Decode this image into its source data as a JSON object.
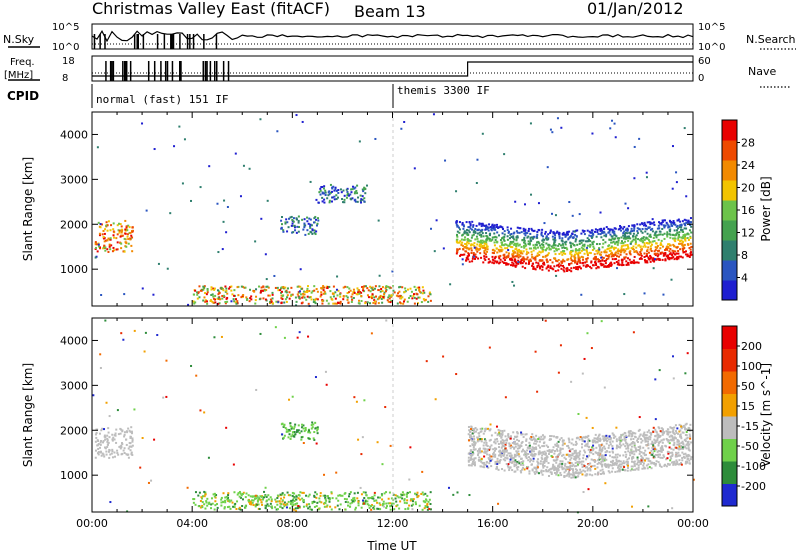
{
  "header": {
    "title": "Christmas Valley East (fitACF)",
    "beam": "Beam 13",
    "date": "01/Jan/2012"
  },
  "top_panels": {
    "nsky_label": "N.Sky",
    "nsky_ticks": [
      "10^5",
      "10^0"
    ],
    "nsearch_label": "N.Search",
    "nsearch_ticks": [
      "10^5",
      "10^0"
    ],
    "freq_label": "Freq.",
    "freq_unit": "[MHz]",
    "freq_ticks": [
      "18",
      "8"
    ],
    "nave_label": "Nave",
    "nave_ticks": [
      "60",
      "0"
    ],
    "cpid_label": "CPID",
    "cpid_modes": [
      {
        "name": "normal (fast) 151 IF",
        "start_hour": 0,
        "end_hour": 12
      },
      {
        "name": "themis 3300 IF",
        "start_hour": 12,
        "end_hour": 24
      }
    ],
    "nave_step_hour": 15
  },
  "chart_data": [
    {
      "type": "heatmap",
      "title": "",
      "ylabel": "Slant Range [km]",
      "xlabel": "",
      "xlim": [
        0,
        24
      ],
      "ylim": [
        180,
        4500
      ],
      "y_ticks": [
        1000,
        2000,
        3000,
        4000
      ],
      "colorbar": {
        "label": "Power [dB]",
        "ticks": [
          "4",
          "8",
          "12",
          "16",
          "20",
          "24",
          "28"
        ],
        "colors": [
          "#1f1fd0",
          "#2a55c0",
          "#2f7f6e",
          "#44a24f",
          "#6cc34a",
          "#f2c400",
          "#f28a00",
          "#ee4a00",
          "#e80000"
        ]
      },
      "features": [
        {
          "name": "early-arc",
          "hours": [
            0.1,
            1.6
          ],
          "range_km": [
            1400,
            2100
          ],
          "level": 24
        },
        {
          "name": "mid-patch",
          "hours": [
            7.5,
            9.0
          ],
          "range_km": [
            1800,
            2200
          ],
          "level": 6
        },
        {
          "name": "upper-streak",
          "hours": [
            9.0,
            11.0
          ],
          "range_km": [
            2500,
            2900
          ],
          "level": 6
        },
        {
          "name": "low-band",
          "hours": [
            4.0,
            13.5
          ],
          "range_km": [
            250,
            650
          ],
          "level": 20
        },
        {
          "name": "evening-arc",
          "hours": [
            14.5,
            23.9
          ],
          "range_km": [
            900,
            2300
          ],
          "level": 28
        }
      ]
    },
    {
      "type": "heatmap",
      "title": "",
      "ylabel": "Slant Range [km]",
      "xlabel": "Time UT",
      "xlim": [
        0,
        24
      ],
      "ylim": [
        180,
        4500
      ],
      "x_ticks": [
        "00:00",
        "04:00",
        "08:00",
        "12:00",
        "16:00",
        "20:00",
        "00:00"
      ],
      "y_ticks": [
        1000,
        2000,
        3000,
        4000
      ],
      "colorbar": {
        "label": "Velocity [m s^-1]",
        "ticks": [
          "200",
          "100",
          "50",
          "15",
          "-15",
          "-50",
          "-100",
          "-200"
        ],
        "colors": [
          "#1f2ad0",
          "#2d8c3a",
          "#6fd14a",
          "#bdbdbd",
          "#f2a000",
          "#f26a00",
          "#e82a00",
          "#e80000"
        ]
      },
      "features": [
        {
          "name": "early-arc",
          "hours": [
            0.1,
            1.6
          ],
          "range_km": [
            1400,
            2100
          ],
          "velocity": 0
        },
        {
          "name": "mid-patch",
          "hours": [
            7.5,
            9.0
          ],
          "range_km": [
            1800,
            2200
          ],
          "velocity": 60
        },
        {
          "name": "low-band",
          "hours": [
            4.0,
            13.5
          ],
          "range_km": [
            250,
            650
          ],
          "velocity": 40
        },
        {
          "name": "evening-arc",
          "hours": [
            15.0,
            23.9
          ],
          "range_km": [
            900,
            2300
          ],
          "velocity": 0
        }
      ]
    }
  ]
}
